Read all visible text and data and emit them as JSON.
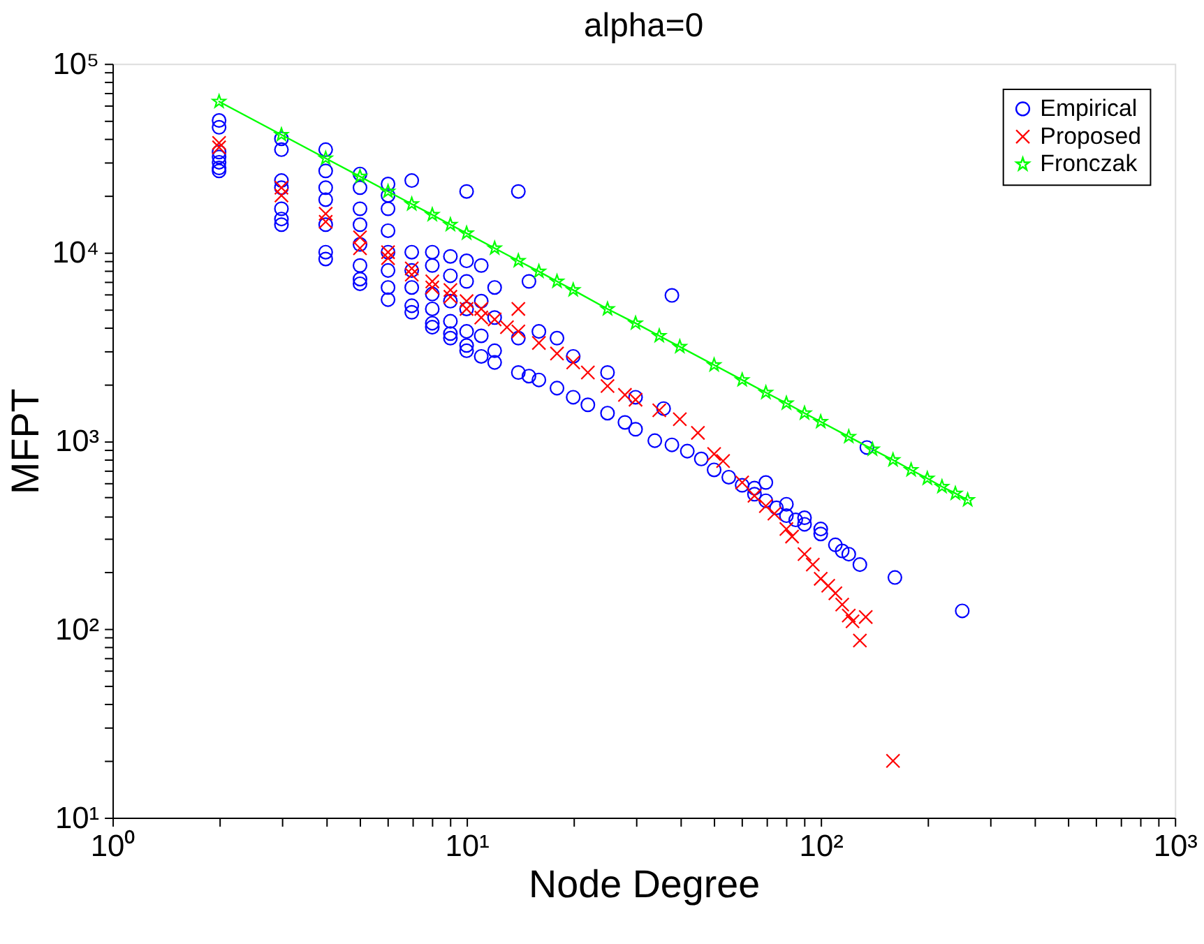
{
  "chart_data": {
    "type": "scatter",
    "title": "alpha=0",
    "xlabel": "Node Degree",
    "ylabel": "MFPT",
    "log": "xy",
    "grid": false,
    "legend": "top right",
    "xlim": [
      1,
      1000
    ],
    "ylim": [
      10,
      100000
    ],
    "xticks": [
      {
        "value": 1,
        "label": "10⁰"
      },
      {
        "value": 2,
        "label": null
      },
      {
        "value": 3,
        "label": null
      },
      {
        "value": 4,
        "label": null
      },
      {
        "value": 5,
        "label": null
      },
      {
        "value": 6,
        "label": null
      },
      {
        "value": 7,
        "label": null
      },
      {
        "value": 8,
        "label": null
      },
      {
        "value": 9,
        "label": null
      },
      {
        "value": 10,
        "label": "10¹"
      },
      {
        "value": 20,
        "label": null
      },
      {
        "value": 30,
        "label": null
      },
      {
        "value": 40,
        "label": null
      },
      {
        "value": 50,
        "label": null
      },
      {
        "value": 60,
        "label": null
      },
      {
        "value": 70,
        "label": null
      },
      {
        "value": 80,
        "label": null
      },
      {
        "value": 90,
        "label": null
      },
      {
        "value": 100,
        "label": "10²"
      },
      {
        "value": 200,
        "label": null
      },
      {
        "value": 300,
        "label": null
      },
      {
        "value": 400,
        "label": null
      },
      {
        "value": 500,
        "label": null
      },
      {
        "value": 600,
        "label": null
      },
      {
        "value": 700,
        "label": null
      },
      {
        "value": 800,
        "label": null
      },
      {
        "value": 900,
        "label": null
      },
      {
        "value": 1000,
        "label": "10³"
      }
    ],
    "yticks": [
      {
        "value": 10,
        "label": "10¹"
      },
      {
        "value": 20,
        "label": null
      },
      {
        "value": 30,
        "label": null
      },
      {
        "value": 40,
        "label": null
      },
      {
        "value": 50,
        "label": null
      },
      {
        "value": 60,
        "label": null
      },
      {
        "value": 70,
        "label": null
      },
      {
        "value": 80,
        "label": null
      },
      {
        "value": 90,
        "label": null
      },
      {
        "value": 100,
        "label": "10²"
      },
      {
        "value": 200,
        "label": null
      },
      {
        "value": 300,
        "label": null
      },
      {
        "value": 400,
        "label": null
      },
      {
        "value": 500,
        "label": null
      },
      {
        "value": 600,
        "label": null
      },
      {
        "value": 700,
        "label": null
      },
      {
        "value": 800,
        "label": null
      },
      {
        "value": 900,
        "label": null
      },
      {
        "value": 1000,
        "label": "10³"
      },
      {
        "value": 2000,
        "label": null
      },
      {
        "value": 3000,
        "label": null
      },
      {
        "value": 4000,
        "label": null
      },
      {
        "value": 5000,
        "label": null
      },
      {
        "value": 6000,
        "label": null
      },
      {
        "value": 7000,
        "label": null
      },
      {
        "value": 8000,
        "label": null
      },
      {
        "value": 9000,
        "label": null
      },
      {
        "value": 10000,
        "label": "10⁴"
      },
      {
        "value": 20000,
        "label": null
      },
      {
        "value": 30000,
        "label": null
      },
      {
        "value": 40000,
        "label": null
      },
      {
        "value": 50000,
        "label": null
      },
      {
        "value": 60000,
        "label": null
      },
      {
        "value": 70000,
        "label": null
      },
      {
        "value": 80000,
        "label": null
      },
      {
        "value": 90000,
        "label": null
      },
      {
        "value": 100000,
        "label": "10⁵"
      }
    ],
    "series": [
      {
        "name": "Empirical",
        "marker": "circle",
        "color": "#0000ff",
        "x": [
          2,
          2,
          2,
          2,
          2,
          2,
          2,
          3,
          3,
          3,
          3,
          3,
          3,
          3,
          4,
          4,
          4,
          4,
          4,
          4,
          4,
          5,
          5,
          5,
          5,
          5,
          5,
          5,
          5,
          6,
          6,
          6,
          6,
          6,
          6,
          6,
          6,
          7,
          7,
          7,
          7,
          7,
          7,
          8,
          8,
          8,
          8,
          8,
          8,
          9,
          9,
          9,
          9,
          9,
          9,
          10,
          10,
          10,
          10,
          10,
          10,
          10,
          11,
          11,
          11,
          11,
          12,
          12,
          12,
          12,
          14,
          14,
          14,
          15,
          15,
          16,
          16,
          18,
          18,
          20,
          20,
          22,
          25,
          25,
          28,
          30,
          30,
          34,
          36,
          38,
          38,
          42,
          46,
          50,
          55,
          60,
          65,
          65,
          70,
          70,
          75,
          80,
          80,
          85,
          90,
          90,
          100,
          100,
          110,
          115,
          120,
          129,
          135,
          162,
          251
        ],
        "values": [
          50000,
          46000,
          34000,
          32000,
          30000,
          28000,
          27000,
          40000,
          35000,
          24000,
          22000,
          17000,
          15000,
          14000,
          35000,
          27000,
          22000,
          19000,
          14000,
          10000,
          9200,
          26000,
          22000,
          17000,
          14000,
          11000,
          8500,
          7200,
          6800,
          23000,
          20000,
          17000,
          13000,
          10000,
          8000,
          6500,
          5600,
          24000,
          10000,
          8000,
          6500,
          5200,
          4800,
          10000,
          8500,
          6000,
          5000,
          4200,
          4000,
          9500,
          7500,
          5500,
          4300,
          3700,
          3500,
          21000,
          9000,
          7000,
          5000,
          3800,
          3200,
          3000,
          8500,
          5500,
          3600,
          2800,
          6500,
          4500,
          3000,
          2600,
          21000,
          3500,
          2300,
          7000,
          2200,
          3800,
          2100,
          3500,
          1900,
          2800,
          1700,
          1550,
          2300,
          1400,
          1250,
          1700,
          1150,
          1000,
          1480,
          5900,
          950,
          880,
          800,
          700,
          640,
          580,
          520,
          560,
          480,
          600,
          440,
          400,
          460,
          380,
          360,
          390,
          320,
          340,
          280,
          260,
          250,
          220,
          920,
          188,
          125
        ]
      },
      {
        "name": "Proposed",
        "marker": "cross",
        "color": "#ff0000",
        "x": [
          2,
          2,
          3,
          3,
          4,
          4,
          5,
          5,
          6,
          6,
          7,
          7,
          8,
          8,
          9,
          9,
          10,
          10,
          11,
          11,
          12,
          13,
          14,
          14,
          16,
          18,
          20,
          22,
          25,
          28,
          30,
          35,
          40,
          45,
          50,
          53,
          60,
          65,
          70,
          74,
          80,
          83,
          90,
          95,
          100,
          105,
          110,
          115,
          120,
          123,
          129,
          134,
          160
        ],
        "values": [
          38000,
          36000,
          22000,
          20000,
          16000,
          14500,
          12000,
          10500,
          10000,
          9300,
          8200,
          7600,
          7000,
          6500,
          6300,
          5800,
          5500,
          5000,
          5000,
          4500,
          4400,
          4000,
          3800,
          5000,
          3300,
          2900,
          2600,
          2300,
          1950,
          1750,
          1650,
          1450,
          1300,
          1100,
          850,
          780,
          600,
          510,
          450,
          410,
          340,
          310,
          250,
          220,
          185,
          170,
          155,
          135,
          118,
          110,
          87,
          116,
          20
        ]
      },
      {
        "name": "Fronczak",
        "type": "line",
        "marker": "star",
        "color": "#00ff00",
        "x": [
          2,
          3,
          4,
          5,
          6,
          7,
          8,
          9,
          10,
          12,
          14,
          16,
          18,
          20,
          25,
          30,
          35,
          40,
          50,
          60,
          70,
          80,
          90,
          100,
          120,
          140,
          160,
          180,
          200,
          220,
          240,
          260
        ],
        "values": [
          63000,
          42000,
          31500,
          25200,
          21000,
          18000,
          15800,
          14000,
          12600,
          10500,
          9000,
          7900,
          7000,
          6300,
          5000,
          4200,
          3600,
          3150,
          2520,
          2100,
          1800,
          1580,
          1400,
          1260,
          1050,
          900,
          790,
          700,
          630,
          570,
          525,
          485
        ]
      }
    ]
  }
}
